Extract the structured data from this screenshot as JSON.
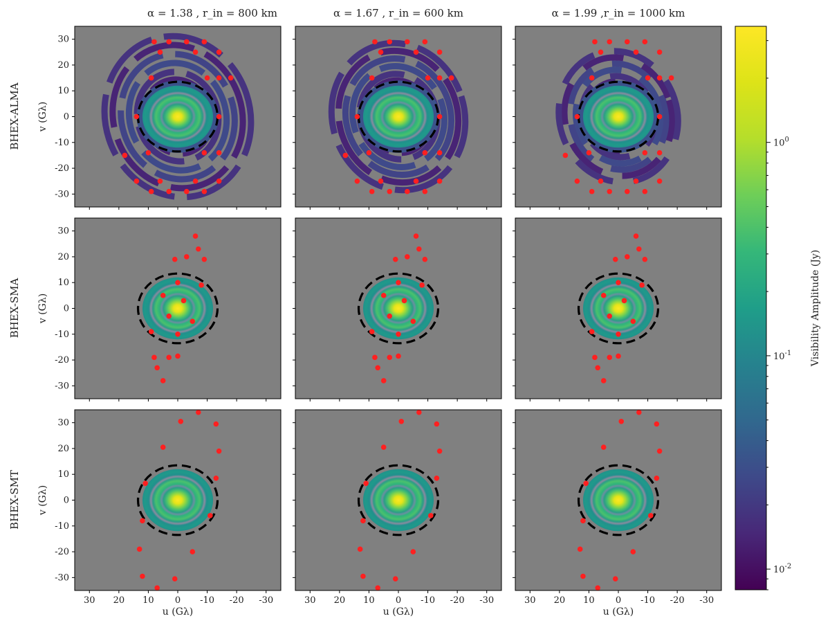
{
  "chart_data": {
    "type": "scatter",
    "layout": "3x3 grid of u-v coverage panels",
    "columns": [
      {
        "title": "α = 1.38 , r_in = 800 km"
      },
      {
        "title": "α = 1.67 , r_in = 600 km"
      },
      {
        "title": "α = 1.99 ,r_in = 1000 km"
      }
    ],
    "rows": [
      {
        "label": "BHEX-ALMA"
      },
      {
        "label": "BHEX-SMA"
      },
      {
        "label": "BHEX-SMT"
      }
    ],
    "xlabel": "u (Gλ)",
    "ylabel": "v (Gλ)",
    "xlim": [
      35,
      -35
    ],
    "ylim": [
      -35,
      35
    ],
    "ticks": [
      30,
      20,
      10,
      0,
      -10,
      -20,
      -30
    ],
    "tick_labels": [
      "30",
      "20",
      "10",
      "0",
      "-10",
      "-20",
      "-30"
    ],
    "dashed_circle_radius": 13.5,
    "colorbar": {
      "label": "Visibility Amplitude (Jy)",
      "scale": "log",
      "range": [
        0.008,
        3.5
      ],
      "ticks": [
        {
          "value": 1,
          "label": "10^0"
        },
        {
          "value": 0.1,
          "label": "10^-1"
        },
        {
          "value": 0.01,
          "label": "10^-2"
        }
      ],
      "colormap": "viridis"
    },
    "background_color": "#808080",
    "marker_color": "#ff2020",
    "points": {
      "alma": [
        [
          8,
          29
        ],
        [
          3,
          29
        ],
        [
          -3,
          29
        ],
        [
          -9,
          29
        ],
        [
          6,
          25
        ],
        [
          -6,
          25
        ],
        [
          -14,
          25
        ],
        [
          -18,
          15
        ],
        [
          -14,
          15
        ],
        [
          -10,
          15
        ],
        [
          9,
          15
        ],
        [
          14,
          0
        ],
        [
          -14,
          0
        ],
        [
          18,
          -15
        ],
        [
          10,
          -14
        ],
        [
          -9,
          -14
        ],
        [
          -14,
          -14
        ],
        [
          14,
          -25
        ],
        [
          6,
          -25
        ],
        [
          -6,
          -25
        ],
        [
          -14,
          -25
        ],
        [
          9,
          -29
        ],
        [
          3,
          -29
        ],
        [
          -3,
          -29
        ],
        [
          -9,
          -29
        ]
      ],
      "sma": [
        [
          -6,
          28
        ],
        [
          -7,
          23
        ],
        [
          -9,
          19
        ],
        [
          -3,
          20
        ],
        [
          1,
          19
        ],
        [
          0,
          10
        ],
        [
          -8,
          9
        ],
        [
          5,
          5
        ],
        [
          -2,
          3
        ],
        [
          3,
          -3
        ],
        [
          -5,
          -5
        ],
        [
          9,
          -9
        ],
        [
          0,
          -10
        ],
        [
          8,
          -19
        ],
        [
          3,
          -19
        ],
        [
          0,
          -18.5
        ],
        [
          7,
          -23
        ],
        [
          5,
          -28
        ]
      ],
      "smt": [
        [
          -7,
          34
        ],
        [
          -1,
          30.5
        ],
        [
          -13,
          29.5
        ],
        [
          5,
          20.5
        ],
        [
          -14,
          19
        ],
        [
          11,
          6.5
        ],
        [
          -13,
          8.5
        ],
        [
          -11,
          -6
        ],
        [
          12,
          -8
        ],
        [
          13,
          -19
        ],
        [
          -5,
          -20
        ],
        [
          12,
          -29.5
        ],
        [
          1,
          -30.5
        ],
        [
          7,
          -34
        ]
      ]
    }
  }
}
